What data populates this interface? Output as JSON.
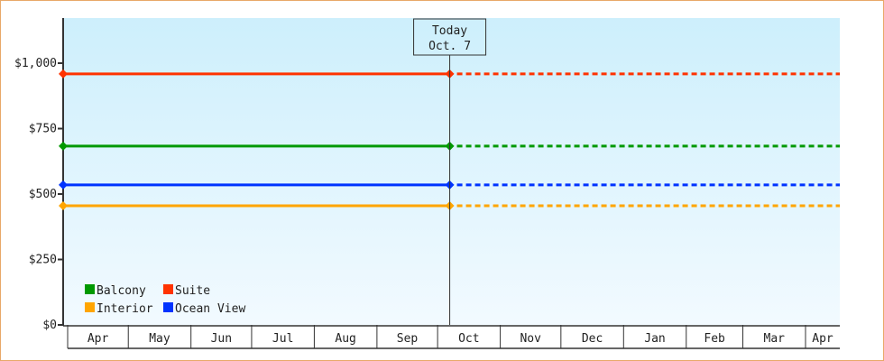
{
  "chart_data": {
    "type": "line",
    "title": "",
    "xlabel": "",
    "ylabel": "",
    "ylim": [
      0,
      1180
    ],
    "yticks": [
      0,
      250,
      500,
      750,
      1000
    ],
    "ytick_labels": [
      "$0",
      "$250",
      "$500",
      "$750",
      "$1,000"
    ],
    "x_tick_labels": [
      "Apr",
      "May",
      "Jun",
      "Jul",
      "Aug",
      "Sep",
      "Oct",
      "Nov",
      "Dec",
      "Jan",
      "Feb",
      "Mar",
      "Apr"
    ],
    "today": {
      "label": "Today",
      "date_label": "Oct. 7"
    },
    "x": [
      "Apr 1",
      "Oct 7"
    ],
    "projection": "dashed line continues at the last value to the right edge",
    "legend_position": "bottom-left",
    "grid": false,
    "background": [
      "#cdeffc",
      "#f2faff"
    ],
    "series": [
      {
        "name": "Balcony",
        "color": "#009900",
        "values": [
          683,
          683
        ]
      },
      {
        "name": "Suite",
        "color": "#ff3300",
        "values": [
          959,
          959
        ]
      },
      {
        "name": "Interior",
        "color": "#ffa500",
        "values": [
          455,
          455
        ]
      },
      {
        "name": "Ocean View",
        "color": "#0033ff",
        "values": [
          535,
          535
        ]
      }
    ]
  }
}
